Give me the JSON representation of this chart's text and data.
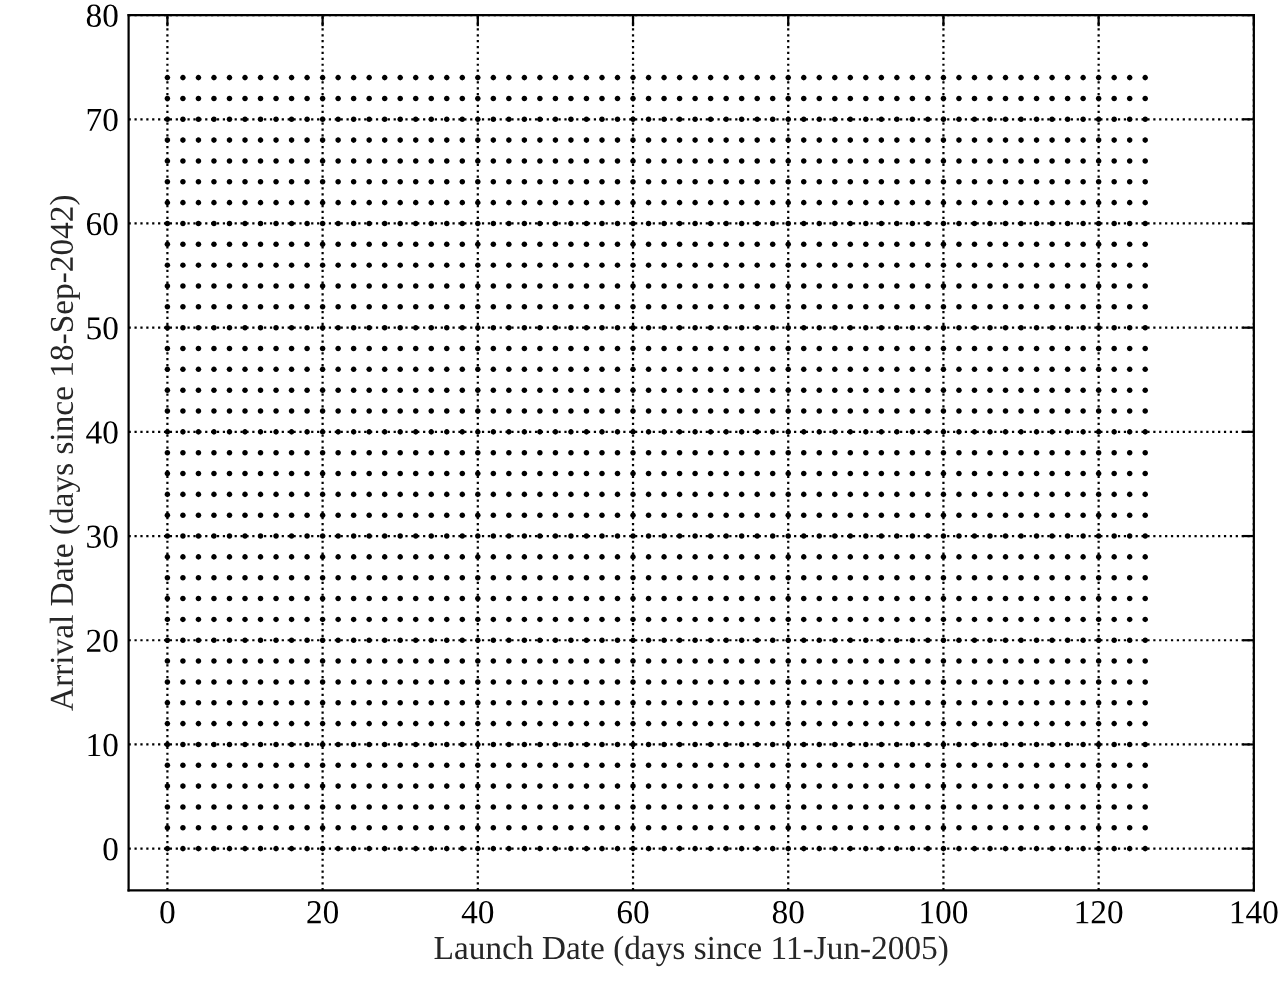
{
  "chart_data": {
    "type": "scatter",
    "xlabel": "Launch Date (days since 11-Jun-2005)",
    "ylabel": "Arrival Date (days since 18-Sep-2042)",
    "xlim": [
      -5,
      140
    ],
    "xticks": [
      0,
      20,
      40,
      60,
      80,
      100,
      120,
      140
    ],
    "ylim": [
      -4,
      80
    ],
    "yticks": [
      0,
      10,
      20,
      30,
      40,
      50,
      60,
      70,
      80
    ],
    "grid": true,
    "marker": "circle",
    "x": [
      0,
      2,
      4,
      6,
      8,
      10,
      12,
      14,
      16,
      18,
      20,
      22,
      24,
      26,
      28,
      30,
      32,
      34,
      36,
      38,
      40,
      42,
      44,
      46,
      48,
      50,
      52,
      54,
      56,
      58,
      60,
      62,
      64,
      66,
      68,
      70,
      72,
      74,
      76,
      78,
      80,
      82,
      84,
      86,
      88,
      90,
      92,
      94,
      96,
      98,
      100,
      102,
      104,
      106,
      108,
      110,
      112,
      114,
      116,
      118,
      120,
      122,
      124,
      126
    ],
    "series": [
      {
        "color": "#000000",
        "values": [
          0,
          0,
          0,
          0,
          0,
          0,
          0,
          0,
          0,
          0,
          0,
          0,
          0,
          0,
          0,
          0,
          0,
          0,
          0,
          0,
          0,
          0,
          0,
          0,
          0,
          0,
          0,
          0,
          0,
          0,
          0,
          0,
          0,
          0,
          0,
          0,
          0,
          0,
          0,
          0,
          0,
          0,
          0,
          0,
          0,
          0,
          0,
          0,
          0,
          0,
          0,
          0,
          0,
          0,
          0,
          0,
          0,
          0,
          0,
          0,
          0,
          0,
          0,
          0
        ]
      },
      {
        "color": "#000000",
        "values": [
          2,
          2,
          2,
          2,
          2,
          2,
          2,
          2,
          2,
          2,
          2,
          2,
          2,
          2,
          2,
          2,
          2,
          2,
          2,
          2,
          2,
          2,
          2,
          2,
          2,
          2,
          2,
          2,
          2,
          2,
          2,
          2,
          2,
          2,
          2,
          2,
          2,
          2,
          2,
          2,
          2,
          2,
          2,
          2,
          2,
          2,
          2,
          2,
          2,
          2,
          2,
          2,
          2,
          2,
          2,
          2,
          2,
          2,
          2,
          2,
          2,
          2,
          2,
          2
        ]
      },
      {
        "color": "#000000",
        "values": [
          4,
          4,
          4,
          4,
          4,
          4,
          4,
          4,
          4,
          4,
          4,
          4,
          4,
          4,
          4,
          4,
          4,
          4,
          4,
          4,
          4,
          4,
          4,
          4,
          4,
          4,
          4,
          4,
          4,
          4,
          4,
          4,
          4,
          4,
          4,
          4,
          4,
          4,
          4,
          4,
          4,
          4,
          4,
          4,
          4,
          4,
          4,
          4,
          4,
          4,
          4,
          4,
          4,
          4,
          4,
          4,
          4,
          4,
          4,
          4,
          4,
          4,
          4,
          4
        ]
      },
      {
        "color": "#000000",
        "values": [
          6,
          6,
          6,
          6,
          6,
          6,
          6,
          6,
          6,
          6,
          6,
          6,
          6,
          6,
          6,
          6,
          6,
          6,
          6,
          6,
          6,
          6,
          6,
          6,
          6,
          6,
          6,
          6,
          6,
          6,
          6,
          6,
          6,
          6,
          6,
          6,
          6,
          6,
          6,
          6,
          6,
          6,
          6,
          6,
          6,
          6,
          6,
          6,
          6,
          6,
          6,
          6,
          6,
          6,
          6,
          6,
          6,
          6,
          6,
          6,
          6,
          6,
          6,
          6
        ]
      },
      {
        "color": "#000000",
        "values": [
          8,
          8,
          8,
          8,
          8,
          8,
          8,
          8,
          8,
          8,
          8,
          8,
          8,
          8,
          8,
          8,
          8,
          8,
          8,
          8,
          8,
          8,
          8,
          8,
          8,
          8,
          8,
          8,
          8,
          8,
          8,
          8,
          8,
          8,
          8,
          8,
          8,
          8,
          8,
          8,
          8,
          8,
          8,
          8,
          8,
          8,
          8,
          8,
          8,
          8,
          8,
          8,
          8,
          8,
          8,
          8,
          8,
          8,
          8,
          8,
          8,
          8,
          8,
          8
        ]
      },
      {
        "color": "#000000",
        "values": [
          10,
          10,
          10,
          10,
          10,
          10,
          10,
          10,
          10,
          10,
          10,
          10,
          10,
          10,
          10,
          10,
          10,
          10,
          10,
          10,
          10,
          10,
          10,
          10,
          10,
          10,
          10,
          10,
          10,
          10,
          10,
          10,
          10,
          10,
          10,
          10,
          10,
          10,
          10,
          10,
          10,
          10,
          10,
          10,
          10,
          10,
          10,
          10,
          10,
          10,
          10,
          10,
          10,
          10,
          10,
          10,
          10,
          10,
          10,
          10,
          10,
          10,
          10,
          10
        ]
      },
      {
        "color": "#000000",
        "values": [
          12,
          12,
          12,
          12,
          12,
          12,
          12,
          12,
          12,
          12,
          12,
          12,
          12,
          12,
          12,
          12,
          12,
          12,
          12,
          12,
          12,
          12,
          12,
          12,
          12,
          12,
          12,
          12,
          12,
          12,
          12,
          12,
          12,
          12,
          12,
          12,
          12,
          12,
          12,
          12,
          12,
          12,
          12,
          12,
          12,
          12,
          12,
          12,
          12,
          12,
          12,
          12,
          12,
          12,
          12,
          12,
          12,
          12,
          12,
          12,
          12,
          12,
          12,
          12
        ]
      },
      {
        "color": "#000000",
        "values": [
          14,
          14,
          14,
          14,
          14,
          14,
          14,
          14,
          14,
          14,
          14,
          14,
          14,
          14,
          14,
          14,
          14,
          14,
          14,
          14,
          14,
          14,
          14,
          14,
          14,
          14,
          14,
          14,
          14,
          14,
          14,
          14,
          14,
          14,
          14,
          14,
          14,
          14,
          14,
          14,
          14,
          14,
          14,
          14,
          14,
          14,
          14,
          14,
          14,
          14,
          14,
          14,
          14,
          14,
          14,
          14,
          14,
          14,
          14,
          14,
          14,
          14,
          14,
          14
        ]
      },
      {
        "color": "#000000",
        "values": [
          16,
          16,
          16,
          16,
          16,
          16,
          16,
          16,
          16,
          16,
          16,
          16,
          16,
          16,
          16,
          16,
          16,
          16,
          16,
          16,
          16,
          16,
          16,
          16,
          16,
          16,
          16,
          16,
          16,
          16,
          16,
          16,
          16,
          16,
          16,
          16,
          16,
          16,
          16,
          16,
          16,
          16,
          16,
          16,
          16,
          16,
          16,
          16,
          16,
          16,
          16,
          16,
          16,
          16,
          16,
          16,
          16,
          16,
          16,
          16,
          16,
          16,
          16,
          16
        ]
      },
      {
        "color": "#000000",
        "values": [
          18,
          18,
          18,
          18,
          18,
          18,
          18,
          18,
          18,
          18,
          18,
          18,
          18,
          18,
          18,
          18,
          18,
          18,
          18,
          18,
          18,
          18,
          18,
          18,
          18,
          18,
          18,
          18,
          18,
          18,
          18,
          18,
          18,
          18,
          18,
          18,
          18,
          18,
          18,
          18,
          18,
          18,
          18,
          18,
          18,
          18,
          18,
          18,
          18,
          18,
          18,
          18,
          18,
          18,
          18,
          18,
          18,
          18,
          18,
          18,
          18,
          18,
          18,
          18
        ]
      },
      {
        "color": "#000000",
        "values": [
          20,
          20,
          20,
          20,
          20,
          20,
          20,
          20,
          20,
          20,
          20,
          20,
          20,
          20,
          20,
          20,
          20,
          20,
          20,
          20,
          20,
          20,
          20,
          20,
          20,
          20,
          20,
          20,
          20,
          20,
          20,
          20,
          20,
          20,
          20,
          20,
          20,
          20,
          20,
          20,
          20,
          20,
          20,
          20,
          20,
          20,
          20,
          20,
          20,
          20,
          20,
          20,
          20,
          20,
          20,
          20,
          20,
          20,
          20,
          20,
          20,
          20,
          20,
          20
        ]
      },
      {
        "color": "#000000",
        "values": [
          22,
          22,
          22,
          22,
          22,
          22,
          22,
          22,
          22,
          22,
          22,
          22,
          22,
          22,
          22,
          22,
          22,
          22,
          22,
          22,
          22,
          22,
          22,
          22,
          22,
          22,
          22,
          22,
          22,
          22,
          22,
          22,
          22,
          22,
          22,
          22,
          22,
          22,
          22,
          22,
          22,
          22,
          22,
          22,
          22,
          22,
          22,
          22,
          22,
          22,
          22,
          22,
          22,
          22,
          22,
          22,
          22,
          22,
          22,
          22,
          22,
          22,
          22,
          22
        ]
      },
      {
        "color": "#000000",
        "values": [
          24,
          24,
          24,
          24,
          24,
          24,
          24,
          24,
          24,
          24,
          24,
          24,
          24,
          24,
          24,
          24,
          24,
          24,
          24,
          24,
          24,
          24,
          24,
          24,
          24,
          24,
          24,
          24,
          24,
          24,
          24,
          24,
          24,
          24,
          24,
          24,
          24,
          24,
          24,
          24,
          24,
          24,
          24,
          24,
          24,
          24,
          24,
          24,
          24,
          24,
          24,
          24,
          24,
          24,
          24,
          24,
          24,
          24,
          24,
          24,
          24,
          24,
          24,
          24
        ]
      },
      {
        "color": "#000000",
        "values": [
          26,
          26,
          26,
          26,
          26,
          26,
          26,
          26,
          26,
          26,
          26,
          26,
          26,
          26,
          26,
          26,
          26,
          26,
          26,
          26,
          26,
          26,
          26,
          26,
          26,
          26,
          26,
          26,
          26,
          26,
          26,
          26,
          26,
          26,
          26,
          26,
          26,
          26,
          26,
          26,
          26,
          26,
          26,
          26,
          26,
          26,
          26,
          26,
          26,
          26,
          26,
          26,
          26,
          26,
          26,
          26,
          26,
          26,
          26,
          26,
          26,
          26,
          26,
          26
        ]
      },
      {
        "color": "#000000",
        "values": [
          28,
          28,
          28,
          28,
          28,
          28,
          28,
          28,
          28,
          28,
          28,
          28,
          28,
          28,
          28,
          28,
          28,
          28,
          28,
          28,
          28,
          28,
          28,
          28,
          28,
          28,
          28,
          28,
          28,
          28,
          28,
          28,
          28,
          28,
          28,
          28,
          28,
          28,
          28,
          28,
          28,
          28,
          28,
          28,
          28,
          28,
          28,
          28,
          28,
          28,
          28,
          28,
          28,
          28,
          28,
          28,
          28,
          28,
          28,
          28,
          28,
          28,
          28,
          28
        ]
      },
      {
        "color": "#000000",
        "values": [
          30,
          30,
          30,
          30,
          30,
          30,
          30,
          30,
          30,
          30,
          30,
          30,
          30,
          30,
          30,
          30,
          30,
          30,
          30,
          30,
          30,
          30,
          30,
          30,
          30,
          30,
          30,
          30,
          30,
          30,
          30,
          30,
          30,
          30,
          30,
          30,
          30,
          30,
          30,
          30,
          30,
          30,
          30,
          30,
          30,
          30,
          30,
          30,
          30,
          30,
          30,
          30,
          30,
          30,
          30,
          30,
          30,
          30,
          30,
          30,
          30,
          30,
          30,
          30
        ]
      },
      {
        "color": "#000000",
        "values": [
          32,
          32,
          32,
          32,
          32,
          32,
          32,
          32,
          32,
          32,
          32,
          32,
          32,
          32,
          32,
          32,
          32,
          32,
          32,
          32,
          32,
          32,
          32,
          32,
          32,
          32,
          32,
          32,
          32,
          32,
          32,
          32,
          32,
          32,
          32,
          32,
          32,
          32,
          32,
          32,
          32,
          32,
          32,
          32,
          32,
          32,
          32,
          32,
          32,
          32,
          32,
          32,
          32,
          32,
          32,
          32,
          32,
          32,
          32,
          32,
          32,
          32,
          32,
          32
        ]
      },
      {
        "color": "#000000",
        "values": [
          34,
          34,
          34,
          34,
          34,
          34,
          34,
          34,
          34,
          34,
          34,
          34,
          34,
          34,
          34,
          34,
          34,
          34,
          34,
          34,
          34,
          34,
          34,
          34,
          34,
          34,
          34,
          34,
          34,
          34,
          34,
          34,
          34,
          34,
          34,
          34,
          34,
          34,
          34,
          34,
          34,
          34,
          34,
          34,
          34,
          34,
          34,
          34,
          34,
          34,
          34,
          34,
          34,
          34,
          34,
          34,
          34,
          34,
          34,
          34,
          34,
          34,
          34,
          34
        ]
      },
      {
        "color": "#000000",
        "values": [
          36,
          36,
          36,
          36,
          36,
          36,
          36,
          36,
          36,
          36,
          36,
          36,
          36,
          36,
          36,
          36,
          36,
          36,
          36,
          36,
          36,
          36,
          36,
          36,
          36,
          36,
          36,
          36,
          36,
          36,
          36,
          36,
          36,
          36,
          36,
          36,
          36,
          36,
          36,
          36,
          36,
          36,
          36,
          36,
          36,
          36,
          36,
          36,
          36,
          36,
          36,
          36,
          36,
          36,
          36,
          36,
          36,
          36,
          36,
          36,
          36,
          36,
          36,
          36
        ]
      },
      {
        "color": "#000000",
        "values": [
          38,
          38,
          38,
          38,
          38,
          38,
          38,
          38,
          38,
          38,
          38,
          38,
          38,
          38,
          38,
          38,
          38,
          38,
          38,
          38,
          38,
          38,
          38,
          38,
          38,
          38,
          38,
          38,
          38,
          38,
          38,
          38,
          38,
          38,
          38,
          38,
          38,
          38,
          38,
          38,
          38,
          38,
          38,
          38,
          38,
          38,
          38,
          38,
          38,
          38,
          38,
          38,
          38,
          38,
          38,
          38,
          38,
          38,
          38,
          38,
          38,
          38,
          38,
          38
        ]
      },
      {
        "color": "#000000",
        "values": [
          40,
          40,
          40,
          40,
          40,
          40,
          40,
          40,
          40,
          40,
          40,
          40,
          40,
          40,
          40,
          40,
          40,
          40,
          40,
          40,
          40,
          40,
          40,
          40,
          40,
          40,
          40,
          40,
          40,
          40,
          40,
          40,
          40,
          40,
          40,
          40,
          40,
          40,
          40,
          40,
          40,
          40,
          40,
          40,
          40,
          40,
          40,
          40,
          40,
          40,
          40,
          40,
          40,
          40,
          40,
          40,
          40,
          40,
          40,
          40,
          40,
          40,
          40,
          40
        ]
      },
      {
        "color": "#000000",
        "values": [
          42,
          42,
          42,
          42,
          42,
          42,
          42,
          42,
          42,
          42,
          42,
          42,
          42,
          42,
          42,
          42,
          42,
          42,
          42,
          42,
          42,
          42,
          42,
          42,
          42,
          42,
          42,
          42,
          42,
          42,
          42,
          42,
          42,
          42,
          42,
          42,
          42,
          42,
          42,
          42,
          42,
          42,
          42,
          42,
          42,
          42,
          42,
          42,
          42,
          42,
          42,
          42,
          42,
          42,
          42,
          42,
          42,
          42,
          42,
          42,
          42,
          42,
          42,
          42
        ]
      },
      {
        "color": "#000000",
        "values": [
          44,
          44,
          44,
          44,
          44,
          44,
          44,
          44,
          44,
          44,
          44,
          44,
          44,
          44,
          44,
          44,
          44,
          44,
          44,
          44,
          44,
          44,
          44,
          44,
          44,
          44,
          44,
          44,
          44,
          44,
          44,
          44,
          44,
          44,
          44,
          44,
          44,
          44,
          44,
          44,
          44,
          44,
          44,
          44,
          44,
          44,
          44,
          44,
          44,
          44,
          44,
          44,
          44,
          44,
          44,
          44,
          44,
          44,
          44,
          44,
          44,
          44,
          44,
          44
        ]
      },
      {
        "color": "#000000",
        "values": [
          46,
          46,
          46,
          46,
          46,
          46,
          46,
          46,
          46,
          46,
          46,
          46,
          46,
          46,
          46,
          46,
          46,
          46,
          46,
          46,
          46,
          46,
          46,
          46,
          46,
          46,
          46,
          46,
          46,
          46,
          46,
          46,
          46,
          46,
          46,
          46,
          46,
          46,
          46,
          46,
          46,
          46,
          46,
          46,
          46,
          46,
          46,
          46,
          46,
          46,
          46,
          46,
          46,
          46,
          46,
          46,
          46,
          46,
          46,
          46,
          46,
          46,
          46,
          46
        ]
      },
      {
        "color": "#000000",
        "values": [
          48,
          48,
          48,
          48,
          48,
          48,
          48,
          48,
          48,
          48,
          48,
          48,
          48,
          48,
          48,
          48,
          48,
          48,
          48,
          48,
          48,
          48,
          48,
          48,
          48,
          48,
          48,
          48,
          48,
          48,
          48,
          48,
          48,
          48,
          48,
          48,
          48,
          48,
          48,
          48,
          48,
          48,
          48,
          48,
          48,
          48,
          48,
          48,
          48,
          48,
          48,
          48,
          48,
          48,
          48,
          48,
          48,
          48,
          48,
          48,
          48,
          48,
          48,
          48
        ]
      },
      {
        "color": "#000000",
        "values": [
          50,
          50,
          50,
          50,
          50,
          50,
          50,
          50,
          50,
          50,
          50,
          50,
          50,
          50,
          50,
          50,
          50,
          50,
          50,
          50,
          50,
          50,
          50,
          50,
          50,
          50,
          50,
          50,
          50,
          50,
          50,
          50,
          50,
          50,
          50,
          50,
          50,
          50,
          50,
          50,
          50,
          50,
          50,
          50,
          50,
          50,
          50,
          50,
          50,
          50,
          50,
          50,
          50,
          50,
          50,
          50,
          50,
          50,
          50,
          50,
          50,
          50,
          50,
          50
        ]
      },
      {
        "color": "#000000",
        "values": [
          52,
          52,
          52,
          52,
          52,
          52,
          52,
          52,
          52,
          52,
          52,
          52,
          52,
          52,
          52,
          52,
          52,
          52,
          52,
          52,
          52,
          52,
          52,
          52,
          52,
          52,
          52,
          52,
          52,
          52,
          52,
          52,
          52,
          52,
          52,
          52,
          52,
          52,
          52,
          52,
          52,
          52,
          52,
          52,
          52,
          52,
          52,
          52,
          52,
          52,
          52,
          52,
          52,
          52,
          52,
          52,
          52,
          52,
          52,
          52,
          52,
          52,
          52,
          52
        ]
      },
      {
        "color": "#000000",
        "values": [
          54,
          54,
          54,
          54,
          54,
          54,
          54,
          54,
          54,
          54,
          54,
          54,
          54,
          54,
          54,
          54,
          54,
          54,
          54,
          54,
          54,
          54,
          54,
          54,
          54,
          54,
          54,
          54,
          54,
          54,
          54,
          54,
          54,
          54,
          54,
          54,
          54,
          54,
          54,
          54,
          54,
          54,
          54,
          54,
          54,
          54,
          54,
          54,
          54,
          54,
          54,
          54,
          54,
          54,
          54,
          54,
          54,
          54,
          54,
          54,
          54,
          54,
          54,
          54
        ]
      },
      {
        "color": "#000000",
        "values": [
          56,
          56,
          56,
          56,
          56,
          56,
          56,
          56,
          56,
          56,
          56,
          56,
          56,
          56,
          56,
          56,
          56,
          56,
          56,
          56,
          56,
          56,
          56,
          56,
          56,
          56,
          56,
          56,
          56,
          56,
          56,
          56,
          56,
          56,
          56,
          56,
          56,
          56,
          56,
          56,
          56,
          56,
          56,
          56,
          56,
          56,
          56,
          56,
          56,
          56,
          56,
          56,
          56,
          56,
          56,
          56,
          56,
          56,
          56,
          56,
          56,
          56,
          56,
          56
        ]
      },
      {
        "color": "#000000",
        "values": [
          58,
          58,
          58,
          58,
          58,
          58,
          58,
          58,
          58,
          58,
          58,
          58,
          58,
          58,
          58,
          58,
          58,
          58,
          58,
          58,
          58,
          58,
          58,
          58,
          58,
          58,
          58,
          58,
          58,
          58,
          58,
          58,
          58,
          58,
          58,
          58,
          58,
          58,
          58,
          58,
          58,
          58,
          58,
          58,
          58,
          58,
          58,
          58,
          58,
          58,
          58,
          58,
          58,
          58,
          58,
          58,
          58,
          58,
          58,
          58,
          58,
          58,
          58,
          58
        ]
      },
      {
        "color": "#000000",
        "values": [
          60,
          60,
          60,
          60,
          60,
          60,
          60,
          60,
          60,
          60,
          60,
          60,
          60,
          60,
          60,
          60,
          60,
          60,
          60,
          60,
          60,
          60,
          60,
          60,
          60,
          60,
          60,
          60,
          60,
          60,
          60,
          60,
          60,
          60,
          60,
          60,
          60,
          60,
          60,
          60,
          60,
          60,
          60,
          60,
          60,
          60,
          60,
          60,
          60,
          60,
          60,
          60,
          60,
          60,
          60,
          60,
          60,
          60,
          60,
          60,
          60,
          60,
          60,
          60
        ]
      },
      {
        "color": "#000000",
        "values": [
          62,
          62,
          62,
          62,
          62,
          62,
          62,
          62,
          62,
          62,
          62,
          62,
          62,
          62,
          62,
          62,
          62,
          62,
          62,
          62,
          62,
          62,
          62,
          62,
          62,
          62,
          62,
          62,
          62,
          62,
          62,
          62,
          62,
          62,
          62,
          62,
          62,
          62,
          62,
          62,
          62,
          62,
          62,
          62,
          62,
          62,
          62,
          62,
          62,
          62,
          62,
          62,
          62,
          62,
          62,
          62,
          62,
          62,
          62,
          62,
          62,
          62,
          62,
          62
        ]
      },
      {
        "color": "#000000",
        "values": [
          64,
          64,
          64,
          64,
          64,
          64,
          64,
          64,
          64,
          64,
          64,
          64,
          64,
          64,
          64,
          64,
          64,
          64,
          64,
          64,
          64,
          64,
          64,
          64,
          64,
          64,
          64,
          64,
          64,
          64,
          64,
          64,
          64,
          64,
          64,
          64,
          64,
          64,
          64,
          64,
          64,
          64,
          64,
          64,
          64,
          64,
          64,
          64,
          64,
          64,
          64,
          64,
          64,
          64,
          64,
          64,
          64,
          64,
          64,
          64,
          64,
          64,
          64,
          64
        ]
      },
      {
        "color": "#000000",
        "values": [
          66,
          66,
          66,
          66,
          66,
          66,
          66,
          66,
          66,
          66,
          66,
          66,
          66,
          66,
          66,
          66,
          66,
          66,
          66,
          66,
          66,
          66,
          66,
          66,
          66,
          66,
          66,
          66,
          66,
          66,
          66,
          66,
          66,
          66,
          66,
          66,
          66,
          66,
          66,
          66,
          66,
          66,
          66,
          66,
          66,
          66,
          66,
          66,
          66,
          66,
          66,
          66,
          66,
          66,
          66,
          66,
          66,
          66,
          66,
          66,
          66,
          66,
          66,
          66
        ]
      },
      {
        "color": "#000000",
        "values": [
          68,
          68,
          68,
          68,
          68,
          68,
          68,
          68,
          68,
          68,
          68,
          68,
          68,
          68,
          68,
          68,
          68,
          68,
          68,
          68,
          68,
          68,
          68,
          68,
          68,
          68,
          68,
          68,
          68,
          68,
          68,
          68,
          68,
          68,
          68,
          68,
          68,
          68,
          68,
          68,
          68,
          68,
          68,
          68,
          68,
          68,
          68,
          68,
          68,
          68,
          68,
          68,
          68,
          68,
          68,
          68,
          68,
          68,
          68,
          68,
          68,
          68,
          68,
          68
        ]
      },
      {
        "color": "#000000",
        "values": [
          70,
          70,
          70,
          70,
          70,
          70,
          70,
          70,
          70,
          70,
          70,
          70,
          70,
          70,
          70,
          70,
          70,
          70,
          70,
          70,
          70,
          70,
          70,
          70,
          70,
          70,
          70,
          70,
          70,
          70,
          70,
          70,
          70,
          70,
          70,
          70,
          70,
          70,
          70,
          70,
          70,
          70,
          70,
          70,
          70,
          70,
          70,
          70,
          70,
          70,
          70,
          70,
          70,
          70,
          70,
          70,
          70,
          70,
          70,
          70,
          70,
          70,
          70,
          70
        ]
      },
      {
        "color": "#000000",
        "values": [
          72,
          72,
          72,
          72,
          72,
          72,
          72,
          72,
          72,
          72,
          72,
          72,
          72,
          72,
          72,
          72,
          72,
          72,
          72,
          72,
          72,
          72,
          72,
          72,
          72,
          72,
          72,
          72,
          72,
          72,
          72,
          72,
          72,
          72,
          72,
          72,
          72,
          72,
          72,
          72,
          72,
          72,
          72,
          72,
          72,
          72,
          72,
          72,
          72,
          72,
          72,
          72,
          72,
          72,
          72,
          72,
          72,
          72,
          72,
          72,
          72,
          72,
          72,
          72
        ]
      },
      {
        "color": "#000000",
        "values": [
          74,
          74,
          74,
          74,
          74,
          74,
          74,
          74,
          74,
          74,
          74,
          74,
          74,
          74,
          74,
          74,
          74,
          74,
          74,
          74,
          74,
          74,
          74,
          74,
          74,
          74,
          74,
          74,
          74,
          74,
          74,
          74,
          74,
          74,
          74,
          74,
          74,
          74,
          74,
          74,
          74,
          74,
          74,
          74,
          74,
          74,
          74,
          74,
          74,
          74,
          74,
          74,
          74,
          74,
          74,
          74,
          74,
          74,
          74,
          74,
          74,
          74,
          74,
          74
        ]
      }
    ]
  }
}
